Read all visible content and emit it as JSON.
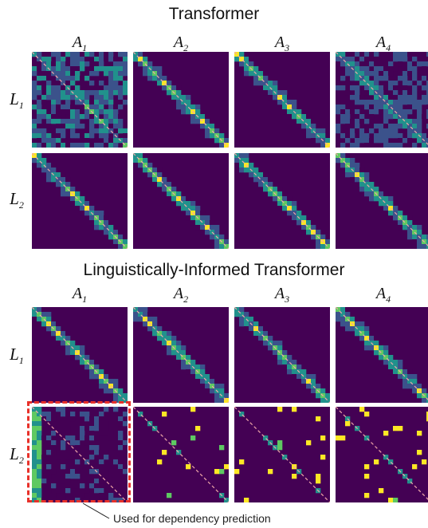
{
  "sections": [
    {
      "title": "Transformer",
      "heads": [
        "A",
        "A",
        "A",
        "A"
      ],
      "head_subs": [
        "1",
        "2",
        "3",
        "4"
      ],
      "layers": [
        "L",
        "L"
      ],
      "layer_subs": [
        "1",
        "2"
      ]
    },
    {
      "title": "Linguistically-Informed Transformer",
      "heads": [
        "A",
        "A",
        "A",
        "A"
      ],
      "head_subs": [
        "1",
        "2",
        "3",
        "4"
      ],
      "layers": [
        "L",
        "L"
      ],
      "layer_subs": [
        "1",
        "2"
      ]
    }
  ],
  "callout": "Used for dependency prediction",
  "colors": {
    "background": "#440154",
    "diagonal": "#f0a8a8",
    "highlight": "#e8312a",
    "scale": [
      "#440154",
      "#3b528b",
      "#21918c",
      "#5ec962",
      "#fde725"
    ]
  }
}
